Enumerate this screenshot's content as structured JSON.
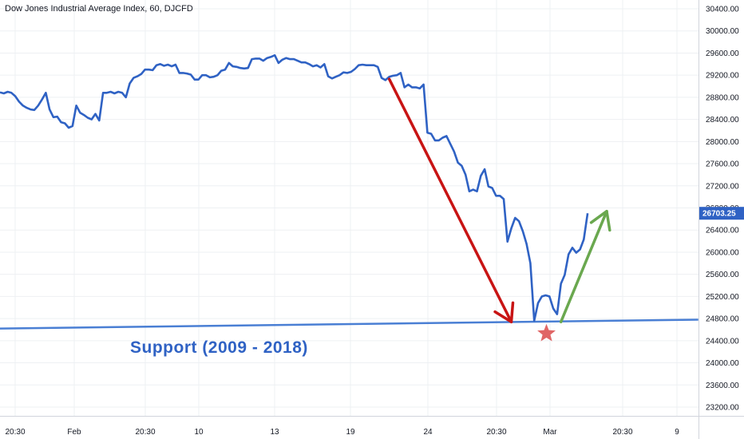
{
  "header": {
    "title": "Dow Jones Industrial Average Index, 60, DJCFD"
  },
  "annotation": {
    "support_label": "Support (2009 - 2018)"
  },
  "colors": {
    "price_line": "#2f62c4",
    "support_line": "#4a7fd4",
    "down_arrow": "#c81414",
    "up_arrow": "#6aa84f",
    "star": "#e06666",
    "price_badge": "#2f62c4",
    "grid": "#eef0f3"
  },
  "icons": {
    "star": "star-icon"
  },
  "chart_data": {
    "type": "line",
    "title": "Dow Jones Industrial Average Index, 60, DJCFD",
    "y_axis_side": "right",
    "ylim": [
      23000,
      30500
    ],
    "y_ticks": [
      "30400.00",
      "30000.00",
      "29600.00",
      "29200.00",
      "28800.00",
      "28400.00",
      "28000.00",
      "27600.00",
      "27200.00",
      "26800.00",
      "26400.00",
      "26000.00",
      "25600.00",
      "25200.00",
      "24800.00",
      "24400.00",
      "24000.00",
      "23600.00",
      "23200.00"
    ],
    "x_ticks": [
      "20:30",
      "Feb",
      "20:30",
      "10",
      "13",
      "19",
      "24",
      "20:30",
      "Mar",
      "20:30",
      "9"
    ],
    "last_price": "26703.25",
    "grid": true,
    "series": [
      {
        "points": [
          [
            0,
            28890
          ],
          [
            1,
            28870
          ],
          [
            2,
            28900
          ],
          [
            3,
            28880
          ],
          [
            4,
            28820
          ],
          [
            5,
            28720
          ],
          [
            6,
            28650
          ],
          [
            7,
            28610
          ],
          [
            8,
            28580
          ],
          [
            9,
            28570
          ],
          [
            10,
            28650
          ],
          [
            11,
            28760
          ],
          [
            12,
            28880
          ],
          [
            13,
            28580
          ],
          [
            14,
            28440
          ],
          [
            15,
            28450
          ],
          [
            16,
            28350
          ],
          [
            17,
            28330
          ],
          [
            18,
            28250
          ],
          [
            19,
            28280
          ],
          [
            20,
            28650
          ],
          [
            21,
            28520
          ],
          [
            22,
            28480
          ],
          [
            23,
            28430
          ],
          [
            24,
            28400
          ],
          [
            25,
            28500
          ],
          [
            26,
            28380
          ],
          [
            27,
            28880
          ],
          [
            28,
            28880
          ],
          [
            29,
            28900
          ],
          [
            30,
            28870
          ],
          [
            31,
            28900
          ],
          [
            32,
            28880
          ],
          [
            33,
            28800
          ],
          [
            34,
            29050
          ],
          [
            35,
            29150
          ],
          [
            36,
            29180
          ],
          [
            37,
            29220
          ],
          [
            38,
            29300
          ],
          [
            39,
            29300
          ],
          [
            40,
            29290
          ],
          [
            41,
            29380
          ],
          [
            42,
            29400
          ],
          [
            43,
            29370
          ],
          [
            44,
            29390
          ],
          [
            45,
            29360
          ],
          [
            46,
            29390
          ],
          [
            47,
            29240
          ],
          [
            48,
            29240
          ],
          [
            49,
            29230
          ],
          [
            50,
            29210
          ],
          [
            51,
            29120
          ],
          [
            52,
            29120
          ],
          [
            53,
            29200
          ],
          [
            54,
            29200
          ],
          [
            55,
            29160
          ],
          [
            56,
            29170
          ],
          [
            57,
            29200
          ],
          [
            58,
            29280
          ],
          [
            59,
            29300
          ],
          [
            60,
            29420
          ],
          [
            61,
            29360
          ],
          [
            62,
            29350
          ],
          [
            63,
            29330
          ],
          [
            64,
            29320
          ],
          [
            65,
            29330
          ],
          [
            66,
            29490
          ],
          [
            67,
            29500
          ],
          [
            68,
            29500
          ],
          [
            69,
            29460
          ],
          [
            70,
            29510
          ],
          [
            71,
            29530
          ],
          [
            72,
            29560
          ],
          [
            73,
            29420
          ],
          [
            74,
            29480
          ],
          [
            75,
            29510
          ],
          [
            76,
            29490
          ],
          [
            77,
            29490
          ],
          [
            78,
            29460
          ],
          [
            79,
            29430
          ],
          [
            80,
            29430
          ],
          [
            81,
            29400
          ],
          [
            82,
            29360
          ],
          [
            83,
            29380
          ],
          [
            84,
            29340
          ],
          [
            85,
            29400
          ],
          [
            86,
            29180
          ],
          [
            87,
            29140
          ],
          [
            88,
            29170
          ],
          [
            89,
            29200
          ],
          [
            90,
            29250
          ],
          [
            91,
            29240
          ],
          [
            92,
            29260
          ],
          [
            93,
            29310
          ],
          [
            94,
            29380
          ],
          [
            95,
            29390
          ],
          [
            96,
            29380
          ],
          [
            97,
            29380
          ],
          [
            98,
            29380
          ],
          [
            99,
            29350
          ],
          [
            100,
            29150
          ],
          [
            101,
            29110
          ],
          [
            102,
            29170
          ],
          [
            103,
            29190
          ],
          [
            104,
            29200
          ],
          [
            105,
            29240
          ],
          [
            106,
            28980
          ],
          [
            107,
            29030
          ],
          [
            108,
            28980
          ],
          [
            109,
            28980
          ],
          [
            110,
            28960
          ],
          [
            111,
            29030
          ],
          [
            112,
            28160
          ],
          [
            113,
            28140
          ],
          [
            114,
            28020
          ],
          [
            115,
            28020
          ],
          [
            116,
            28070
          ],
          [
            117,
            28100
          ],
          [
            118,
            27960
          ],
          [
            119,
            27820
          ],
          [
            120,
            27620
          ],
          [
            121,
            27560
          ],
          [
            122,
            27400
          ],
          [
            123,
            27100
          ],
          [
            124,
            27130
          ],
          [
            125,
            27100
          ],
          [
            126,
            27380
          ],
          [
            127,
            27500
          ],
          [
            128,
            27190
          ],
          [
            129,
            27160
          ],
          [
            130,
            27020
          ],
          [
            131,
            27020
          ],
          [
            132,
            26960
          ],
          [
            133,
            26190
          ],
          [
            134,
            26430
          ],
          [
            135,
            26620
          ],
          [
            136,
            26560
          ],
          [
            137,
            26380
          ],
          [
            138,
            26150
          ],
          [
            139,
            25800
          ],
          [
            140,
            24760
          ],
          [
            141,
            25080
          ],
          [
            142,
            25200
          ],
          [
            143,
            25220
          ],
          [
            144,
            25200
          ],
          [
            145,
            24980
          ],
          [
            146,
            24880
          ],
          [
            147,
            25430
          ],
          [
            148,
            25590
          ],
          [
            149,
            25960
          ],
          [
            150,
            26080
          ],
          [
            151,
            25990
          ],
          [
            152,
            26050
          ],
          [
            153,
            26230
          ],
          [
            154,
            26703
          ]
        ]
      }
    ],
    "annotations": [
      {
        "type": "support_line",
        "label": "Support (2009 - 2018)",
        "from": [
          0,
          24620
        ],
        "to": [
          183,
          24780
        ]
      },
      {
        "type": "down_arrow",
        "from": [
          102,
          29130
        ],
        "to": [
          134,
          24740
        ]
      },
      {
        "type": "up_arrow",
        "from": [
          147,
          24740
        ],
        "to": [
          159,
          26740
        ]
      },
      {
        "type": "star",
        "at": [
          143,
          24530
        ]
      }
    ]
  }
}
